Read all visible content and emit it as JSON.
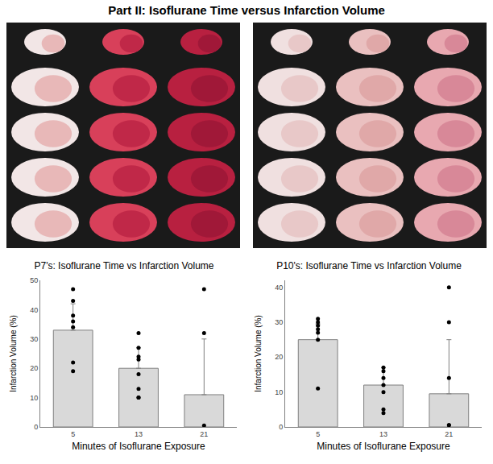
{
  "title": "Part II: Isoflurane Time versus Infarction Volume",
  "chart_data": [
    {
      "type": "bar",
      "title": "P7's: Isoflurane Time vs Infarction Volume",
      "x_label": "Minutes of Isoflurane Exposure",
      "y_label": "Infarction Volume (%)",
      "categories": [
        "5",
        "13",
        "21"
      ],
      "values": [
        33,
        20,
        11
      ],
      "error": [
        9,
        7,
        19
      ],
      "points": [
        [
          47,
          43,
          38,
          36,
          34,
          22,
          19
        ],
        [
          32,
          27,
          24,
          23,
          18,
          13,
          10,
          10
        ],
        [
          47,
          32,
          0.5
        ]
      ],
      "color": "#d9d9d9",
      "ylim": [
        0,
        50
      ],
      "yticks": [
        0,
        10,
        20,
        30,
        40,
        50
      ]
    },
    {
      "type": "bar",
      "title": "P10's: Isoflurane Time vs Infarction Volume",
      "x_label": "Minutes of Isoflurane Exposure",
      "y_label": "Infarction Volume (%)",
      "categories": [
        "5",
        "13",
        "21"
      ],
      "values": [
        25,
        12,
        9.5
      ],
      "error": [
        4.5,
        5,
        15.5
      ],
      "points": [
        [
          31,
          30,
          29,
          28,
          27,
          25,
          11
        ],
        [
          17,
          16,
          14,
          12,
          10,
          5,
          4
        ],
        [
          40,
          30,
          14,
          0.5,
          0.5
        ]
      ],
      "color": "#d9d9d9",
      "ylim": [
        0,
        42
      ],
      "yticks": [
        0,
        10,
        20,
        30,
        40
      ]
    }
  ]
}
